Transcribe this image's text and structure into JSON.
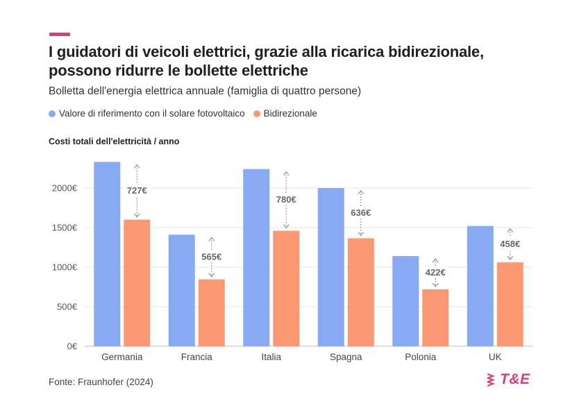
{
  "title": "I guidatori di veicoli elettrici, grazie alla ricarica bidirezionale, possono ridurre le bollette elettriche",
  "subtitle": "Bolletta dell'energia elettrica annuale (famiglia di quattro persone)",
  "source": "Fonte: Fraunhofer (2024)",
  "logo": {
    "text": "T&E",
    "icon": "chevron-stack-icon",
    "color": "#d93f77"
  },
  "accent_color": "#c9457c",
  "chart_data": {
    "type": "bar",
    "ylabel": "Costi totali dell'elettricità / anno",
    "categories": [
      "Germania",
      "Francia",
      "Italia",
      "Spagna",
      "Polonia",
      "UK"
    ],
    "series": [
      {
        "name": "Valore di riferimento con il solare fotovoltaico",
        "color": "#88aaf2",
        "values": [
          2330,
          1410,
          2240,
          2000,
          1140,
          1520
        ]
      },
      {
        "name": "Bidirezionale",
        "color": "#fb9874",
        "values": [
          1600,
          845,
          1460,
          1365,
          720,
          1060
        ]
      }
    ],
    "savings_labels": [
      "727€",
      "565€",
      "780€",
      "636€",
      "422€",
      "458€"
    ],
    "yticks": [
      0,
      500,
      1000,
      1500,
      2000
    ],
    "ytick_labels": [
      "0€",
      "500€",
      "1000€",
      "1500€",
      "2000€"
    ],
    "ylim": [
      0,
      2400
    ],
    "grid": true,
    "legend_position": "top-left"
  }
}
